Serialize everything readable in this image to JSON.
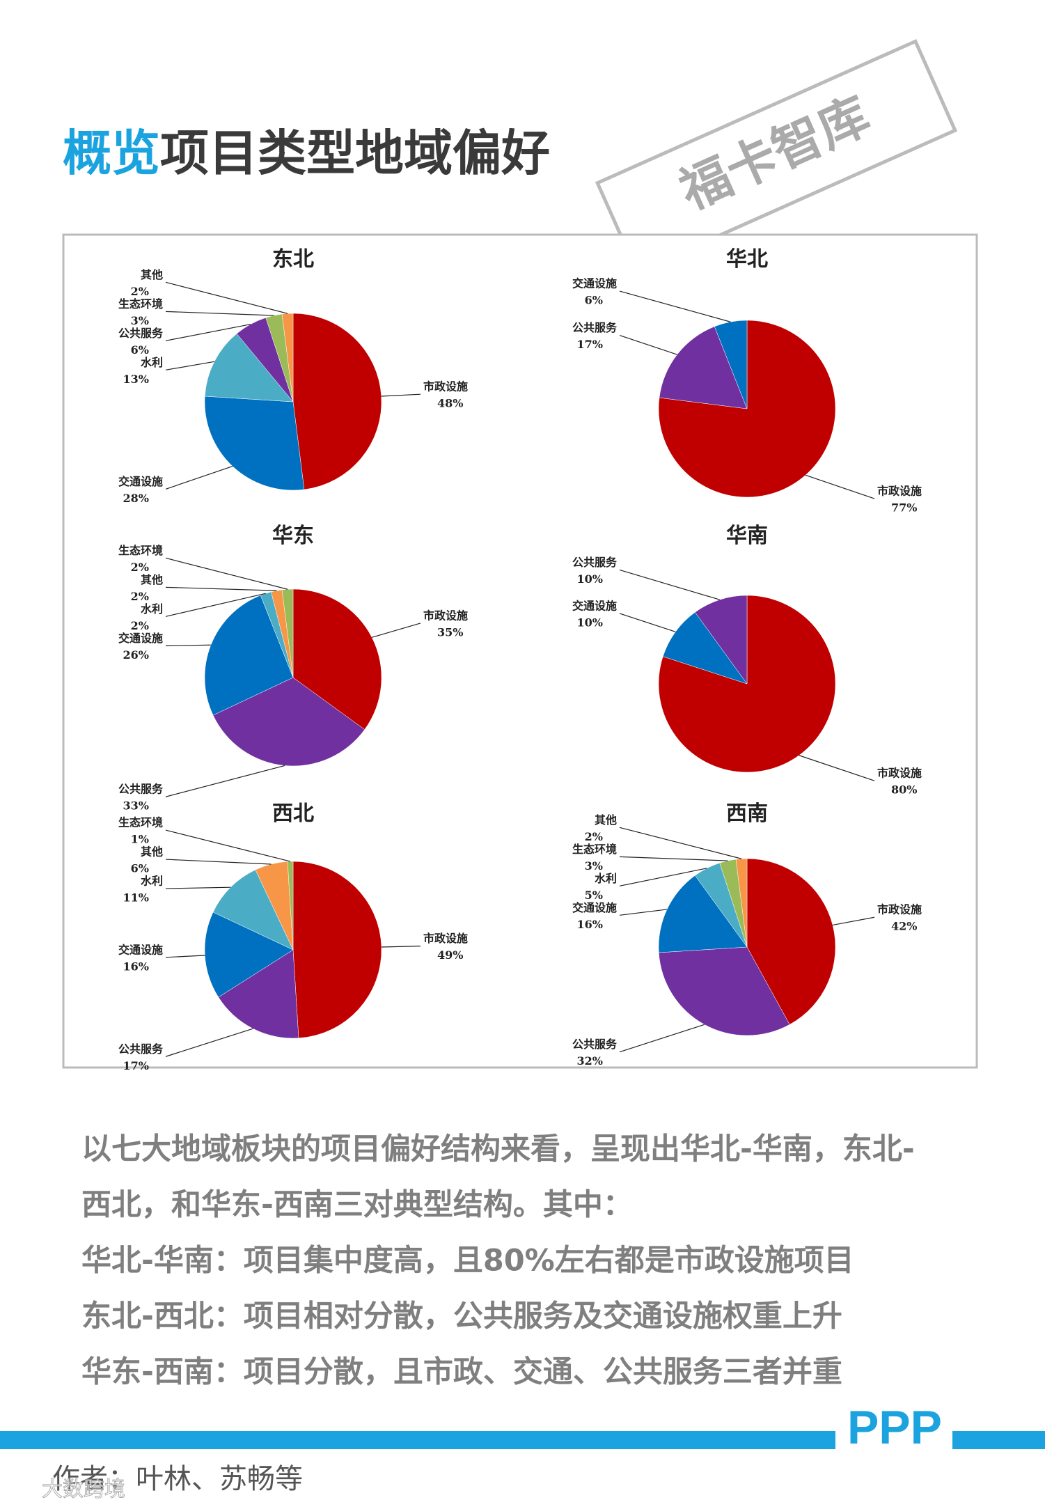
{
  "title_highlight": "概览",
  "title": "项目类型地域偏好",
  "stamp": "福卡智库",
  "chart_data": [
    {
      "type": "pie",
      "title": "东北",
      "categories": [
        "市政设施",
        "交通设施",
        "水利",
        "公共服务",
        "生态环境",
        "其他"
      ],
      "values": [
        48,
        28,
        13,
        6,
        3,
        2
      ],
      "value_labels": [
        "48%",
        "28%",
        "13%",
        "6%",
        "3%",
        "2%"
      ],
      "colors": [
        "#c00000",
        "#0070c0",
        "#4bacc6",
        "#7030a0",
        "#9bbb59",
        "#f79646"
      ]
    },
    {
      "type": "pie",
      "title": "华北",
      "categories": [
        "市政设施",
        "公共服务",
        "交通设施"
      ],
      "values": [
        77,
        17,
        6
      ],
      "value_labels": [
        "77%",
        "17%",
        "6%"
      ],
      "colors": [
        "#c00000",
        "#7030a0",
        "#0070c0"
      ]
    },
    {
      "type": "pie",
      "title": "华东",
      "categories": [
        "市政设施",
        "公共服务",
        "交通设施",
        "水利",
        "其他",
        "生态环境"
      ],
      "values": [
        35,
        33,
        26,
        2,
        2,
        2
      ],
      "value_labels": [
        "35%",
        "33%",
        "26%",
        "2%",
        "2%",
        "2%"
      ],
      "colors": [
        "#c00000",
        "#7030a0",
        "#0070c0",
        "#4bacc6",
        "#f79646",
        "#9bbb59"
      ]
    },
    {
      "type": "pie",
      "title": "华南",
      "categories": [
        "市政设施",
        "交通设施",
        "公共服务"
      ],
      "values": [
        80,
        10,
        10
      ],
      "value_labels": [
        "80%",
        "10%",
        "10%"
      ],
      "colors": [
        "#c00000",
        "#0070c0",
        "#7030a0"
      ]
    },
    {
      "type": "pie",
      "title": "西北",
      "categories": [
        "市政设施",
        "公共服务",
        "交通设施",
        "水利",
        "其他",
        "生态环境"
      ],
      "values": [
        49,
        17,
        16,
        11,
        6,
        1
      ],
      "value_labels": [
        "49%",
        "17%",
        "16%",
        "11%",
        "6%",
        "1%"
      ],
      "colors": [
        "#c00000",
        "#7030a0",
        "#0070c0",
        "#4bacc6",
        "#f79646",
        "#9bbb59"
      ]
    },
    {
      "type": "pie",
      "title": "西南",
      "categories": [
        "市政设施",
        "公共服务",
        "交通设施",
        "水利",
        "生态环境",
        "其他"
      ],
      "values": [
        42,
        32,
        16,
        5,
        3,
        2
      ],
      "value_labels": [
        "42%",
        "32%",
        "16%",
        "5%",
        "3%",
        "2%"
      ],
      "colors": [
        "#c00000",
        "#7030a0",
        "#0070c0",
        "#4bacc6",
        "#9bbb59",
        "#f79646"
      ]
    }
  ],
  "paragraphs": [
    "以七大地域板块的项目偏好结构来看，呈现出华北-华南，东北-",
    "西北，和华东-西南三对典型结构。其中：",
    "华北-华南：项目集中度高，且80%左右都是市政设施项目",
    "东北-西北：项目相对分散，公共服务及交通设施权重上升",
    "华东-西南：项目分散，且市政、交通、公共服务三者并重"
  ],
  "brand": "PPP",
  "author": "作者：叶林、苏畅等",
  "watermark": "大数跨境"
}
